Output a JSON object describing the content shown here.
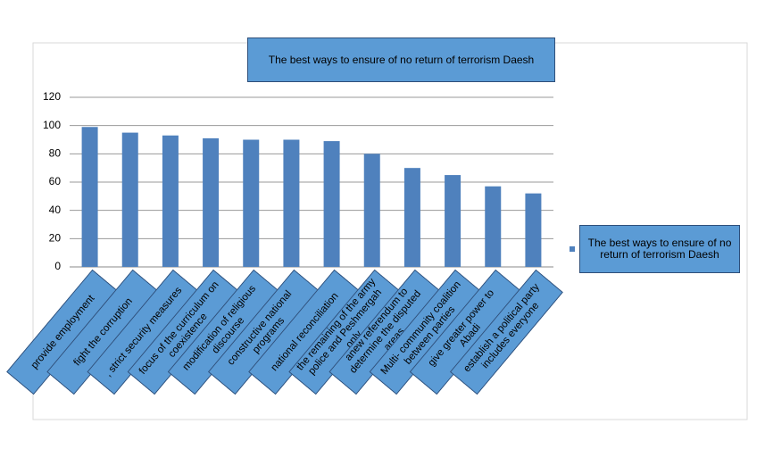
{
  "chart_data": {
    "type": "bar",
    "title": "The best ways to ensure of no return of terrorism Daesh",
    "categories": [
      "provide employment",
      "fight the corruption",
      ", strict security measures",
      "focus of the curriculum on coexistence",
      "modification of religious discourse",
      "constructive national programs",
      "national reconciliation",
      "the remaining of the army police and Peshmergah only",
      "anew referendum to determine the disputed areas",
      "Multi- community coalition between parties",
      "give greater power to Abadi",
      "establish a political party includes everyone"
    ],
    "series": [
      {
        "name": "The best ways to ensure of no return of terrorism Daesh",
        "color": "#4f81bd",
        "values": [
          99,
          95,
          93,
          91,
          90,
          90,
          89,
          80,
          70,
          65,
          57,
          52
        ]
      }
    ],
    "ylim": [
      0,
      120
    ],
    "yticks": [
      0,
      20,
      40,
      60,
      80,
      100,
      120
    ],
    "grid": true,
    "legend": "right"
  }
}
